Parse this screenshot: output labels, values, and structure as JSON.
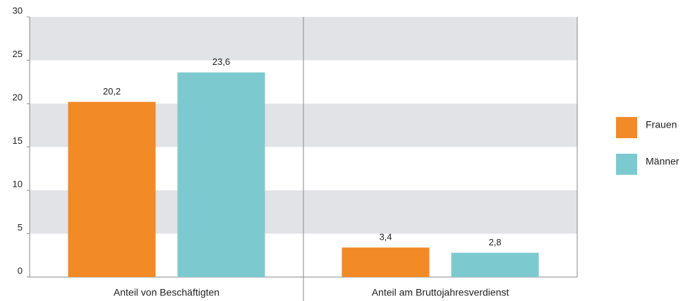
{
  "chart_data": {
    "type": "bar",
    "categories": [
      "Anteil von Beschäftigten",
      "Anteil am Bruttojahresverdienst"
    ],
    "series": [
      {
        "name": "Frauen",
        "color": "#f28a25",
        "values": [
          20.2,
          3.4
        ],
        "value_labels": [
          "20,2",
          "3,4"
        ]
      },
      {
        "name": "Männer",
        "color": "#7ccad0",
        "values": [
          23.6,
          2.8
        ],
        "value_labels": [
          "23,6",
          "2,8"
        ]
      }
    ],
    "ylim": [
      0,
      30
    ],
    "yticks": [
      0,
      5,
      10,
      15,
      20,
      25,
      30
    ],
    "grid": true,
    "legend": "right"
  }
}
